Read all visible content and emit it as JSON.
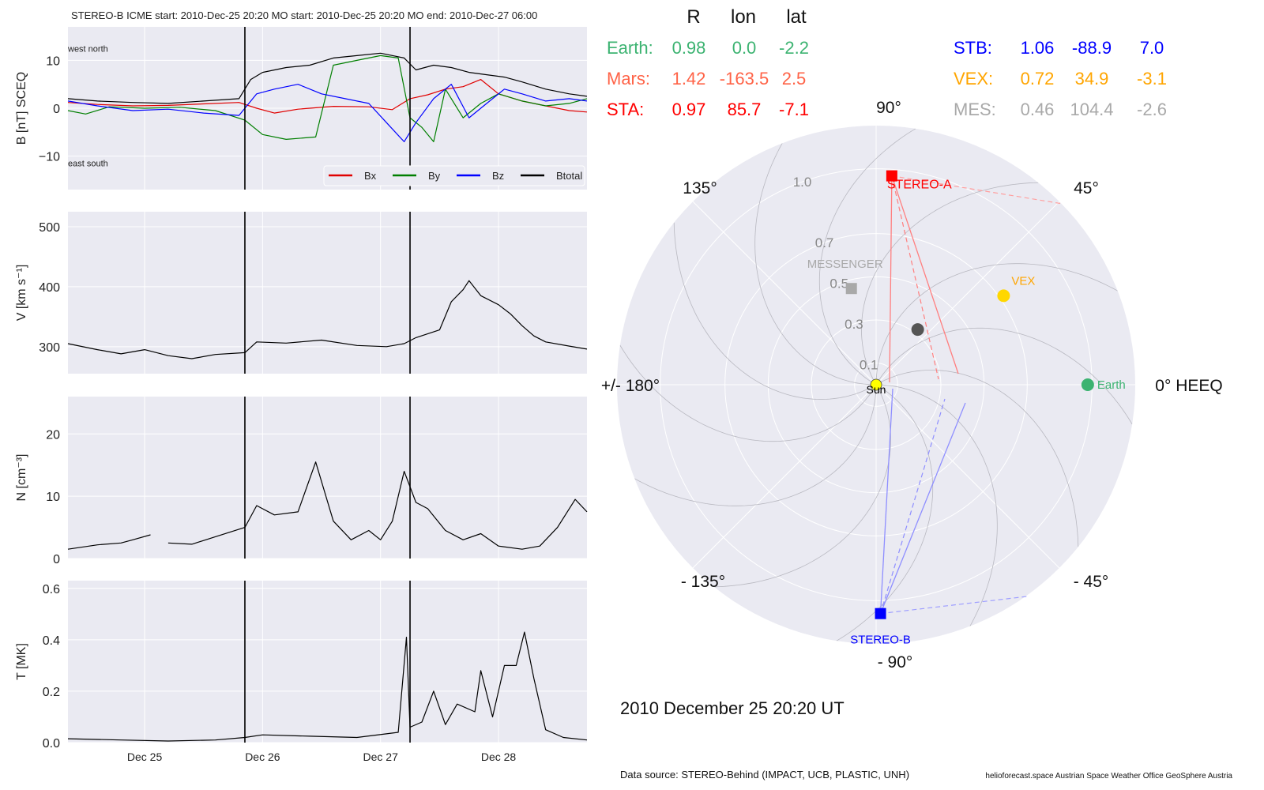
{
  "header": {
    "title": "STEREO-B    ICME start: 2010-Dec-25 20:20   MO start: 2010-Dec-25 20:20   MO end: 2010-Dec-27 06:00"
  },
  "colors": {
    "panel_bg": "#eaeaf2",
    "grid": "#ffffff",
    "bx": "#e00000",
    "by": "#007f00",
    "bz": "#0000ff",
    "btot": "#000000",
    "earth": "#3cb371",
    "mars": "#ff6347",
    "sta": "#ff0000",
    "stb": "#0000ff",
    "vex": "#ffa500",
    "mes": "#a9a9a9",
    "sun": "#ffff00",
    "vex_marker": "#ffd700",
    "unknown_marker": "#555555"
  },
  "chart_data": [
    {
      "id": "mag",
      "type": "line",
      "ylabel": "B [nT] SCEQ",
      "ylim": [
        -17,
        17
      ],
      "yticks": [
        -10,
        0,
        10
      ],
      "ytick_labels": [
        "−10",
        "0",
        "10"
      ],
      "xlim": [
        24.35,
        28.75
      ],
      "xticks": [
        25,
        26,
        27,
        28
      ],
      "xtick_labels": [
        "Dec 25",
        "Dec 26",
        "Dec 27",
        "Dec 28"
      ],
      "event_lines": [
        25.85,
        27.25
      ],
      "annotations": [
        {
          "text": "west    north",
          "x": 24.35,
          "y": 12.5
        },
        {
          "text": "east    south",
          "x": 24.35,
          "y": -11.5
        }
      ],
      "legend": {
        "placement": "lower right",
        "entries": [
          "Bx",
          "By",
          "Bz",
          "Btotal"
        ]
      },
      "series": [
        {
          "name": "Bx",
          "color": "#e00000",
          "points": [
            [
              24.35,
              1.2
            ],
            [
              24.6,
              0.8
            ],
            [
              24.9,
              0.5
            ],
            [
              25.2,
              0.6
            ],
            [
              25.5,
              0.9
            ],
            [
              25.8,
              1.2
            ],
            [
              25.95,
              0.0
            ],
            [
              26.1,
              -1.0
            ],
            [
              26.3,
              -0.2
            ],
            [
              26.6,
              0.4
            ],
            [
              26.9,
              0.3
            ],
            [
              27.1,
              -0.3
            ],
            [
              27.25,
              2.0
            ],
            [
              27.4,
              2.8
            ],
            [
              27.55,
              4.0
            ],
            [
              27.7,
              4.5
            ],
            [
              27.85,
              6.0
            ],
            [
              28.0,
              3.0
            ],
            [
              28.2,
              1.5
            ],
            [
              28.4,
              0.5
            ],
            [
              28.6,
              -0.5
            ],
            [
              28.75,
              -0.8
            ]
          ]
        },
        {
          "name": "By",
          "color": "#007f00",
          "points": [
            [
              24.35,
              -0.5
            ],
            [
              24.5,
              -1.2
            ],
            [
              24.7,
              0.3
            ],
            [
              25.0,
              0.0
            ],
            [
              25.3,
              0.2
            ],
            [
              25.6,
              -0.5
            ],
            [
              25.85,
              -2.5
            ],
            [
              26.0,
              -5.5
            ],
            [
              26.2,
              -6.5
            ],
            [
              26.45,
              -6.0
            ],
            [
              26.6,
              9.0
            ],
            [
              26.8,
              10.0
            ],
            [
              27.0,
              11.0
            ],
            [
              27.15,
              10.5
            ],
            [
              27.25,
              -2.0
            ],
            [
              27.35,
              -4.0
            ],
            [
              27.45,
              -7.0
            ],
            [
              27.55,
              4.0
            ],
            [
              27.7,
              -2.0
            ],
            [
              27.85,
              1.0
            ],
            [
              28.0,
              3.0
            ],
            [
              28.2,
              1.5
            ],
            [
              28.4,
              0.5
            ],
            [
              28.6,
              1.0
            ],
            [
              28.75,
              2.0
            ]
          ]
        },
        {
          "name": "Bz",
          "color": "#0000ff",
          "points": [
            [
              24.35,
              1.5
            ],
            [
              24.6,
              0.5
            ],
            [
              24.9,
              -0.5
            ],
            [
              25.2,
              -0.2
            ],
            [
              25.5,
              -1.0
            ],
            [
              25.8,
              -1.5
            ],
            [
              25.95,
              3.0
            ],
            [
              26.1,
              4.0
            ],
            [
              26.3,
              5.0
            ],
            [
              26.5,
              3.0
            ],
            [
              26.7,
              2.0
            ],
            [
              26.9,
              1.0
            ],
            [
              27.05,
              -3.0
            ],
            [
              27.2,
              -7.0
            ],
            [
              27.3,
              -3.0
            ],
            [
              27.45,
              2.0
            ],
            [
              27.6,
              5.0
            ],
            [
              27.75,
              -2.0
            ],
            [
              27.9,
              1.0
            ],
            [
              28.05,
              4.0
            ],
            [
              28.2,
              3.0
            ],
            [
              28.4,
              1.5
            ],
            [
              28.6,
              2.0
            ],
            [
              28.75,
              1.5
            ]
          ]
        },
        {
          "name": "Btotal",
          "color": "#000000",
          "points": [
            [
              24.35,
              2.0
            ],
            [
              24.6,
              1.5
            ],
            [
              24.9,
              1.2
            ],
            [
              25.2,
              1.0
            ],
            [
              25.5,
              1.5
            ],
            [
              25.8,
              2.0
            ],
            [
              25.9,
              6.0
            ],
            [
              26.0,
              7.5
            ],
            [
              26.2,
              8.5
            ],
            [
              26.4,
              9.0
            ],
            [
              26.6,
              10.5
            ],
            [
              26.8,
              11.0
            ],
            [
              27.0,
              11.5
            ],
            [
              27.2,
              10.5
            ],
            [
              27.3,
              8.0
            ],
            [
              27.45,
              9.0
            ],
            [
              27.6,
              8.5
            ],
            [
              27.75,
              7.5
            ],
            [
              27.9,
              7.0
            ],
            [
              28.05,
              6.5
            ],
            [
              28.2,
              5.5
            ],
            [
              28.4,
              4.0
            ],
            [
              28.6,
              3.0
            ],
            [
              28.75,
              2.5
            ]
          ]
        }
      ]
    },
    {
      "id": "speed",
      "type": "line",
      "ylabel": "V [km s⁻¹]",
      "ylim": [
        255,
        525
      ],
      "yticks": [
        300,
        400,
        500
      ],
      "ytick_labels": [
        "300",
        "400",
        "500"
      ],
      "xlim": [
        24.35,
        28.75
      ],
      "xticks": [
        25,
        26,
        27,
        28
      ],
      "event_lines": [
        25.85,
        27.25
      ],
      "series": [
        {
          "name": "V",
          "color": "#000000",
          "points": [
            [
              24.35,
              305
            ],
            [
              24.6,
              295
            ],
            [
              24.8,
              288
            ],
            [
              25.0,
              295
            ],
            [
              25.2,
              285
            ],
            [
              25.4,
              280
            ],
            [
              25.6,
              287
            ],
            [
              25.85,
              290
            ],
            [
              25.95,
              308
            ],
            [
              26.2,
              306
            ],
            [
              26.5,
              311
            ],
            [
              26.8,
              302
            ],
            [
              27.05,
              300
            ],
            [
              27.2,
              305
            ],
            [
              27.3,
              315
            ],
            [
              27.5,
              328
            ],
            [
              27.6,
              375
            ],
            [
              27.7,
              395
            ],
            [
              27.75,
              410
            ],
            [
              27.85,
              385
            ],
            [
              28.0,
              370
            ],
            [
              28.1,
              355
            ],
            [
              28.2,
              335
            ],
            [
              28.3,
              318
            ],
            [
              28.4,
              308
            ],
            [
              28.6,
              301
            ],
            [
              28.75,
              296
            ]
          ]
        }
      ]
    },
    {
      "id": "density",
      "type": "line",
      "ylabel": "N [cm⁻³]",
      "ylim": [
        0,
        26
      ],
      "yticks": [
        0,
        10,
        20
      ],
      "ytick_labels": [
        "0",
        "10",
        "20"
      ],
      "xlim": [
        24.35,
        28.75
      ],
      "xticks": [
        25,
        26,
        27,
        28
      ],
      "event_lines": [
        25.85,
        27.25
      ],
      "series": [
        {
          "name": "N",
          "color": "#000000",
          "points": [
            [
              24.35,
              1.5
            ],
            [
              24.6,
              2.2
            ],
            [
              24.8,
              2.5
            ],
            [
              24.9,
              3.0
            ],
            [
              25.05,
              3.8
            ],
            [
              25.1,
              null
            ],
            [
              25.2,
              2.5
            ],
            [
              25.4,
              2.3
            ],
            [
              25.6,
              3.5
            ],
            [
              25.85,
              5.0
            ],
            [
              25.95,
              8.5
            ],
            [
              26.1,
              7.0
            ],
            [
              26.3,
              7.5
            ],
            [
              26.45,
              15.5
            ],
            [
              26.6,
              6.0
            ],
            [
              26.75,
              3.0
            ],
            [
              26.9,
              4.5
            ],
            [
              27.0,
              3.0
            ],
            [
              27.1,
              6.0
            ],
            [
              27.2,
              14.0
            ],
            [
              27.3,
              9.0
            ],
            [
              27.4,
              8.0
            ],
            [
              27.55,
              4.5
            ],
            [
              27.7,
              3.0
            ],
            [
              27.85,
              4.0
            ],
            [
              28.0,
              2.0
            ],
            [
              28.2,
              1.5
            ],
            [
              28.35,
              2.0
            ],
            [
              28.5,
              5.0
            ],
            [
              28.65,
              9.5
            ],
            [
              28.75,
              7.5
            ]
          ]
        }
      ]
    },
    {
      "id": "temperature",
      "type": "line",
      "ylabel": "T [MK]",
      "ylim": [
        0,
        0.63
      ],
      "yticks": [
        0.0,
        0.2,
        0.4,
        0.6
      ],
      "ytick_labels": [
        "0.0",
        "0.2",
        "0.4",
        "0.6"
      ],
      "xlim": [
        24.35,
        28.75
      ],
      "xticks": [
        25,
        26,
        27,
        28
      ],
      "xtick_labels": [
        "Dec 25",
        "Dec 26",
        "Dec 27",
        "Dec 28"
      ],
      "event_lines": [
        25.85,
        27.25
      ],
      "series": [
        {
          "name": "T",
          "color": "#000000",
          "points": [
            [
              24.35,
              0.015
            ],
            [
              24.8,
              0.01
            ],
            [
              25.2,
              0.006
            ],
            [
              25.6,
              0.01
            ],
            [
              25.85,
              0.02
            ],
            [
              26.0,
              0.03
            ],
            [
              26.4,
              0.025
            ],
            [
              26.8,
              0.02
            ],
            [
              27.15,
              0.04
            ],
            [
              27.22,
              0.41
            ],
            [
              27.25,
              0.06
            ],
            [
              27.35,
              0.08
            ],
            [
              27.45,
              0.2
            ],
            [
              27.55,
              0.07
            ],
            [
              27.65,
              0.15
            ],
            [
              27.8,
              0.12
            ],
            [
              27.85,
              0.28
            ],
            [
              27.95,
              0.1
            ],
            [
              28.05,
              0.3
            ],
            [
              28.15,
              0.3
            ],
            [
              28.22,
              0.43
            ],
            [
              28.3,
              0.25
            ],
            [
              28.4,
              0.05
            ],
            [
              28.55,
              0.02
            ],
            [
              28.75,
              0.01
            ]
          ]
        }
      ]
    },
    {
      "id": "positions",
      "type": "scatter",
      "projection": "polar",
      "r_max": 1.2,
      "r_ticks": [
        0.1,
        0.3,
        0.5,
        0.7,
        1.0
      ],
      "r_tick_labels": [
        "0.1",
        "0.3",
        "0.5",
        "0.7",
        "1.0"
      ],
      "theta_labels": [
        "0° HEEQ",
        "45°",
        "90°",
        "135°",
        "+/- 180°",
        "- 135°",
        "- 90°",
        "- 45°"
      ],
      "bodies": [
        {
          "name": "Sun",
          "r": 0.0,
          "lon": 0.0,
          "marker": "circle",
          "color": "#ffff00"
        },
        {
          "name": "Earth",
          "r": 0.98,
          "lon": 0.0,
          "marker": "circle",
          "color": "#3cb371"
        },
        {
          "name": "STEREO-A",
          "r": 0.97,
          "lon": 85.7,
          "marker": "square",
          "color": "#ff0000"
        },
        {
          "name": "STEREO-B",
          "r": 1.06,
          "lon": -88.9,
          "marker": "square",
          "color": "#0000ff"
        },
        {
          "name": "VEX",
          "r": 0.72,
          "lon": 34.9,
          "marker": "circle",
          "color": "#ffd700"
        },
        {
          "name": "MESSENGER",
          "r": 0.46,
          "lon": 104.4,
          "marker": "square",
          "color": "#a9a9a9"
        },
        {
          "name": "",
          "r": 0.32,
          "lon": 53.0,
          "marker": "circle",
          "color": "#555555"
        }
      ],
      "table": {
        "headers": [
          "R",
          "lon",
          "lat"
        ],
        "rows": [
          {
            "label": "Earth:",
            "r": "0.98",
            "lon": "0.0",
            "lat": "-2.2",
            "color": "#3cb371"
          },
          {
            "label": "Mars:",
            "r": "1.42",
            "lon": "-163.5",
            "lat": "2.5",
            "color": "#ff6347"
          },
          {
            "label": "STA:",
            "r": "0.97",
            "lon": "85.7",
            "lat": "-7.1",
            "color": "#ff0000"
          },
          {
            "label": "STB:",
            "r": "1.06",
            "lon": "-88.9",
            "lat": "7.0",
            "color": "#0000ff"
          },
          {
            "label": "VEX:",
            "r": "0.72",
            "lon": "34.9",
            "lat": "-3.1",
            "color": "#ffa500"
          },
          {
            "label": "MES:",
            "r": "0.46",
            "lon": "104.4",
            "lat": "-2.6",
            "color": "#a9a9a9"
          }
        ]
      }
    }
  ],
  "footer": {
    "date": "2010 December 25  20:20 UT",
    "source": "Data source: STEREO-Behind (IMPACT, UCB, PLASTIC, UNH)",
    "credits": "helioforecast.space   Austrian Space Weather Office   GeoSphere Austria"
  }
}
